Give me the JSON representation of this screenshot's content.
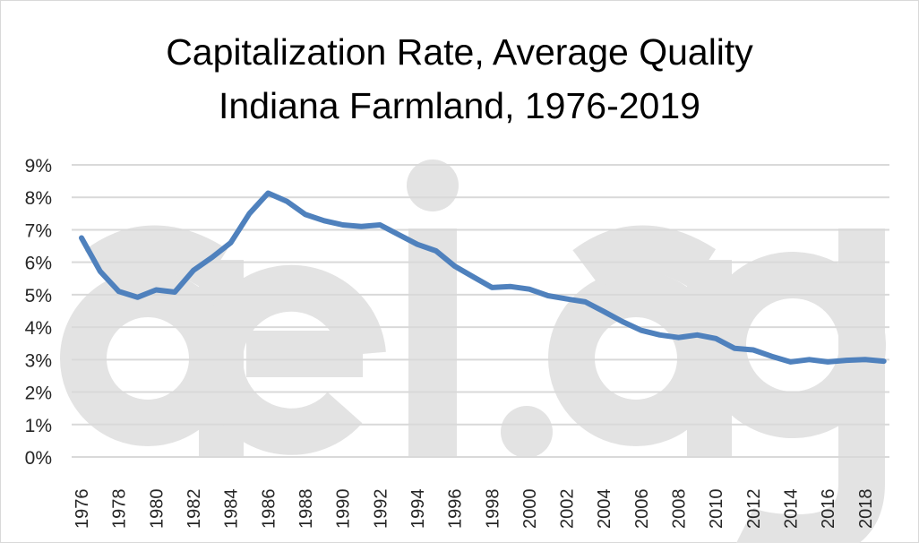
{
  "chart_data": {
    "type": "line",
    "title": "Capitalization Rate, Average Quality",
    "subtitle": "Indiana Farmland, 1976-2019",
    "watermark": "aei.ag",
    "xlabel": "",
    "ylabel": "",
    "ylim": [
      0,
      9
    ],
    "y_ticks": [
      "0%",
      "1%",
      "2%",
      "3%",
      "4%",
      "5%",
      "6%",
      "7%",
      "8%",
      "9%"
    ],
    "x_tick_labels": [
      "1976",
      "1978",
      "1980",
      "1982",
      "1984",
      "1986",
      "1988",
      "1990",
      "1992",
      "1994",
      "1996",
      "1998",
      "2000",
      "2002",
      "2004",
      "2006",
      "2008",
      "2010",
      "2012",
      "2014",
      "2016",
      "2018"
    ],
    "grid": true,
    "legend": "none",
    "line_color": "#4f81bd",
    "x": [
      1976,
      1977,
      1978,
      1979,
      1980,
      1981,
      1982,
      1983,
      1984,
      1985,
      1986,
      1987,
      1988,
      1989,
      1990,
      1991,
      1992,
      1993,
      1994,
      1995,
      1996,
      1997,
      1998,
      1999,
      2000,
      2001,
      2002,
      2003,
      2004,
      2005,
      2006,
      2007,
      2008,
      2009,
      2010,
      2011,
      2012,
      2013,
      2014,
      2015,
      2016,
      2017,
      2018,
      2019
    ],
    "values": [
      6.75,
      5.72,
      5.1,
      4.92,
      5.15,
      5.08,
      5.75,
      6.15,
      6.6,
      7.5,
      8.13,
      7.88,
      7.47,
      7.28,
      7.15,
      7.1,
      7.15,
      6.85,
      6.55,
      6.35,
      5.88,
      5.55,
      5.22,
      5.25,
      5.17,
      4.97,
      4.87,
      4.78,
      4.48,
      4.17,
      3.9,
      3.76,
      3.68,
      3.76,
      3.65,
      3.35,
      3.3,
      3.1,
      2.93,
      3.0,
      2.93,
      2.98,
      3.0,
      2.95
    ]
  }
}
